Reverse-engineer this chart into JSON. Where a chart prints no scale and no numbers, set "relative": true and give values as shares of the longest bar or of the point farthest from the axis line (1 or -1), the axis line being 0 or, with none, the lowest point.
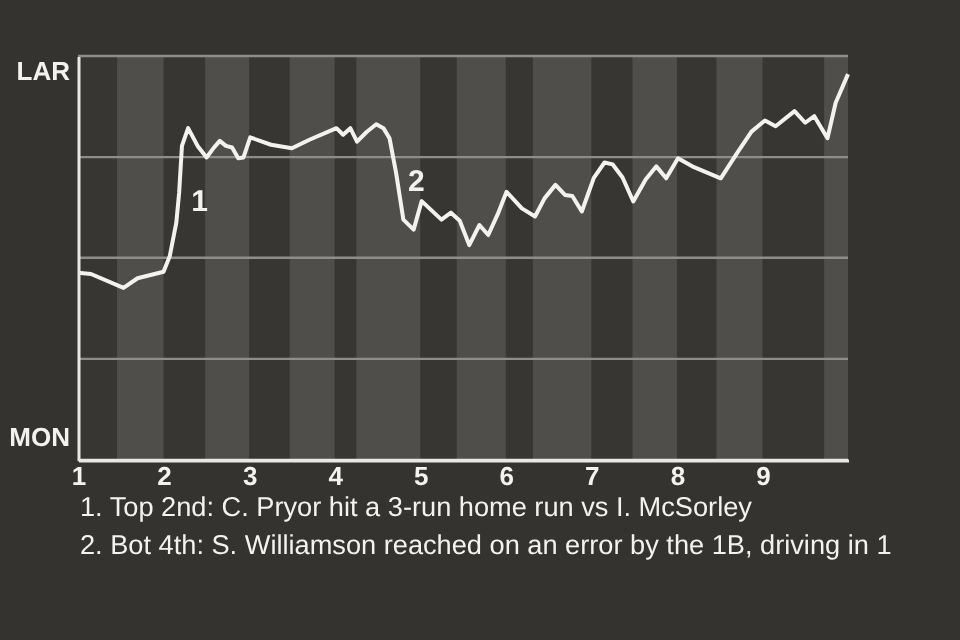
{
  "chart_data": {
    "type": "line",
    "relative": true,
    "x": [
      1.0,
      1.152,
      1.532,
      1.696,
      2.0,
      2.072,
      2.149,
      2.182,
      2.215,
      2.287,
      2.398,
      2.503,
      2.586,
      2.657,
      2.729,
      2.801,
      2.873,
      2.934,
      3.013,
      3.256,
      3.5,
      3.705,
      4.021,
      4.099,
      4.183,
      4.261,
      4.373,
      4.486,
      4.57,
      4.641,
      4.718,
      4.803,
      4.923,
      5.017,
      5.248,
      5.359,
      5.462,
      5.573,
      5.692,
      5.795,
      5.906,
      6.009,
      6.188,
      6.342,
      6.453,
      6.581,
      6.692,
      6.778,
      6.889,
      7.029,
      7.154,
      7.25,
      7.365,
      7.49,
      7.635,
      7.76,
      7.875,
      8.013,
      8.179,
      8.513,
      8.705,
      8.872,
      9.029,
      9.154,
      9.375,
      9.5,
      9.606,
      9.76,
      9.856,
      10
    ],
    "series": [
      {
        "color": "#f2f2f0",
        "values": [
          0.485,
          0.482,
          0.446,
          0.471,
          0.488,
          0.528,
          0.615,
          0.692,
          0.814,
          0.86,
          0.814,
          0.784,
          0.809,
          0.827,
          0.814,
          0.81,
          0.782,
          0.784,
          0.836,
          0.817,
          0.808,
          0.83,
          0.86,
          0.843,
          0.86,
          0.825,
          0.85,
          0.87,
          0.86,
          0.834,
          0.744,
          0.623,
          0.597,
          0.671,
          0.623,
          0.641,
          0.62,
          0.557,
          0.609,
          0.583,
          0.637,
          0.695,
          0.652,
          0.631,
          0.678,
          0.713,
          0.687,
          0.684,
          0.644,
          0.731,
          0.771,
          0.766,
          0.732,
          0.67,
          0.727,
          0.761,
          0.73,
          0.782,
          0.761,
          0.73,
          0.796,
          0.851,
          0.88,
          0.865,
          0.904,
          0.874,
          0.891,
          0.834,
          0.926,
          1
        ]
      }
    ],
    "xlim": [
      1,
      10
    ],
    "xticks": [
      1,
      2,
      3,
      4,
      5,
      6,
      7,
      8,
      9
    ],
    "ref_lines": [
      {
        "axis": "y",
        "value": 0,
        "label": "MON",
        "color": "#e8e8e6"
      },
      {
        "axis": "y",
        "value": 0.262,
        "label": null,
        "color": "#8e8d8a"
      },
      {
        "axis": "y",
        "value": 0.524,
        "label": null,
        "color": "#8e8d8a"
      },
      {
        "axis": "y",
        "value": 0.785,
        "label": null,
        "color": "#8e8d8a"
      },
      {
        "axis": "y",
        "value": 1.047,
        "label": "LAR",
        "color": "#8e8d8a"
      }
    ],
    "bands": [
      {
        "axis": "x",
        "from": 1.456,
        "to": 2,
        "color": "#4f4e4b"
      },
      {
        "axis": "x",
        "from": 2.486,
        "to": 3,
        "color": "#4f4e4b"
      },
      {
        "axis": "x",
        "from": 3.474,
        "to": 4,
        "color": "#4f4e4b"
      },
      {
        "axis": "x",
        "from": 4.254,
        "to": 5,
        "color": "#4f4e4b"
      },
      {
        "axis": "x",
        "from": 5.427,
        "to": 6,
        "color": "#4f4e4b"
      },
      {
        "axis": "x",
        "from": 6.316,
        "to": 7,
        "color": "#4f4e4b"
      },
      {
        "axis": "x",
        "from": 7.481,
        "to": 8,
        "color": "#4f4e4b"
      },
      {
        "axis": "x",
        "from": 8.462,
        "to": 9,
        "color": "#4f4e4b"
      },
      {
        "axis": "x",
        "from": 9.721,
        "to": 10,
        "color": "#4f4e4b"
      }
    ],
    "annotations": [
      {
        "text": "1",
        "x": 2.182,
        "y": 0.692
      },
      {
        "text": "2",
        "x": 4.718,
        "y": 0.744
      },
      "1. Top 2nd: C. Pryor hit a 3-run home run vs I. McSorley",
      "2. Bot 4th: S. Williamson reached on an error by the 1B, driving in 1"
    ]
  }
}
